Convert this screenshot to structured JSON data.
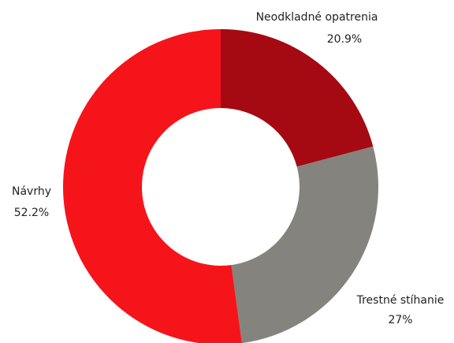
{
  "chart_data": {
    "type": "pie",
    "categories": [
      "Neodkladné opatrenia",
      "Trestné stíhanie",
      "Návrhy"
    ],
    "values": [
      20.9,
      27,
      52.2
    ],
    "value_labels": [
      "20.9%",
      "27%",
      "52.2%"
    ],
    "colors": [
      "#a50a12",
      "#85837e",
      "#f5141a"
    ],
    "donut": true
  }
}
